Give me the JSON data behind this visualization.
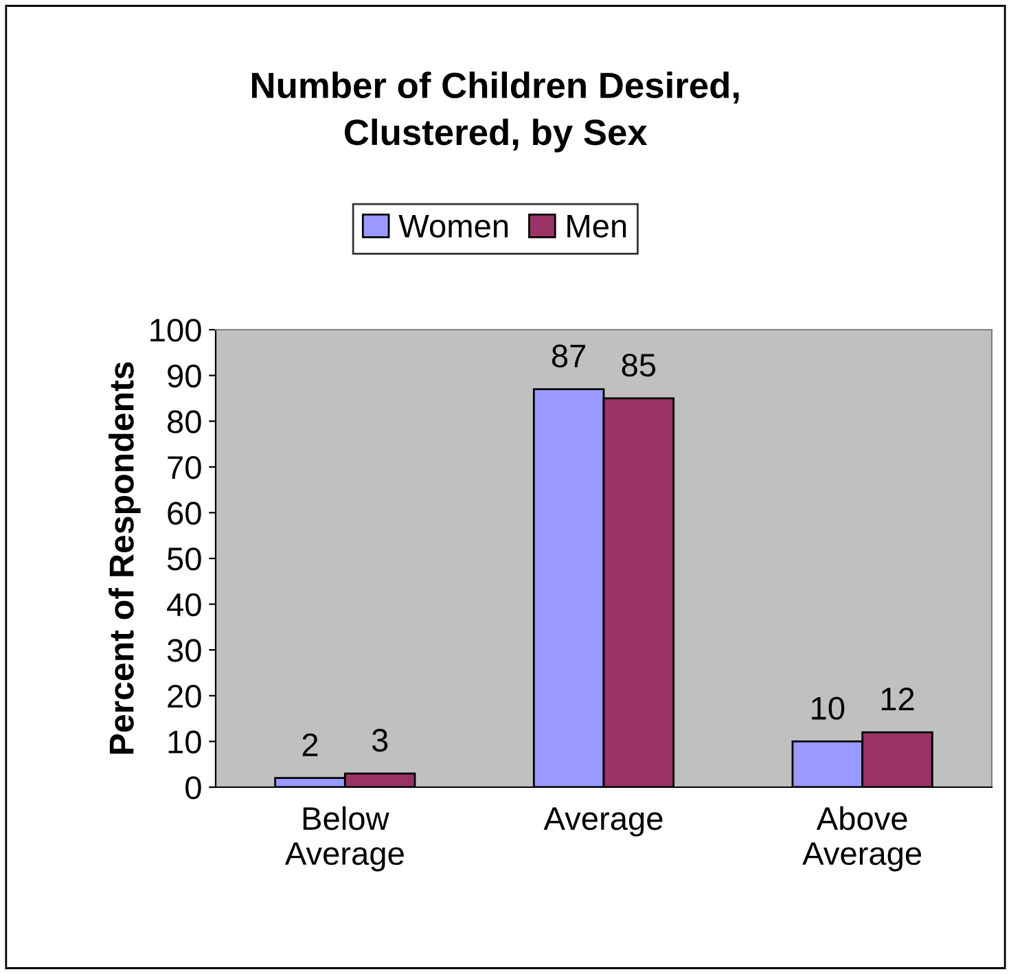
{
  "chart_data": {
    "type": "bar",
    "title": "Number of Children Desired,\nClustered, by Sex",
    "ylabel": "Percent of Respondents",
    "categories": [
      "Below\nAverage",
      "Average",
      "Above\nAverage"
    ],
    "series": [
      {
        "name": "Women",
        "color": "#9999ff",
        "values": [
          2,
          87,
          10
        ]
      },
      {
        "name": "Men",
        "color": "#993366",
        "values": [
          3,
          85,
          12
        ]
      }
    ],
    "ylim": [
      0,
      100
    ],
    "yticks": [
      0,
      10,
      20,
      30,
      40,
      50,
      60,
      70,
      80,
      90,
      100
    ],
    "grid": false,
    "legend": "top",
    "data_labels": true
  }
}
